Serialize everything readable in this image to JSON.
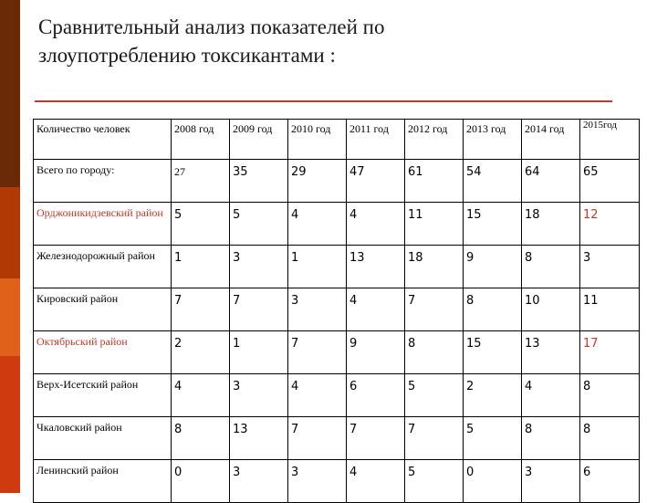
{
  "theme": {
    "sidebar_colors": [
      "#6b2a07",
      "#b13a04",
      "#e0611a",
      "#cf3a0f"
    ],
    "accent": "#c0392b",
    "rule_color": "#c0392b"
  },
  "title": {
    "line1": "Сравнительный анализ показателей по",
    "line2": "злоупотреблению токсикантами :"
  },
  "table": {
    "headers": [
      "Количество человек",
      "2008 год",
      "2009 год",
      "2010 год",
      "2011 год",
      "2012 год",
      "2013 год",
      "2014 год",
      "2015год"
    ],
    "rows": [
      {
        "name": "Всего по городу:",
        "highlight": false,
        "values": [
          "27",
          "35",
          "29",
          "47",
          "61",
          "54",
          "64",
          "65"
        ]
      },
      {
        "name": "Орджоникидзевский район",
        "highlight": true,
        "values": [
          "5",
          "5",
          "4",
          "4",
          "11",
          "15",
          "18",
          "12"
        ]
      },
      {
        "name": "Железнодорожный район",
        "highlight": false,
        "values": [
          "1",
          "3",
          "1",
          "13",
          "18",
          "9",
          "8",
          "3"
        ]
      },
      {
        "name": "Кировский район",
        "highlight": false,
        "values": [
          "7",
          "7",
          "3",
          "4",
          "7",
          "8",
          "10",
          "11"
        ]
      },
      {
        "name": "Октябрьский район",
        "highlight": true,
        "values": [
          "2",
          "1",
          "7",
          "9",
          "8",
          "15",
          "13",
          "17"
        ]
      },
      {
        "name": "Верх-Исетский район",
        "highlight": false,
        "values": [
          "4",
          "3",
          "4",
          "6",
          "5",
          "2",
          "4",
          "8"
        ]
      },
      {
        "name": "Чкаловский район",
        "highlight": false,
        "values": [
          "8",
          "13",
          "7",
          "7",
          "7",
          "5",
          "8",
          "8"
        ]
      },
      {
        "name": "Ленинский район",
        "highlight": false,
        "values": [
          "0",
          "3",
          "3",
          "4",
          "5",
          "0",
          "3",
          "6"
        ]
      }
    ]
  }
}
